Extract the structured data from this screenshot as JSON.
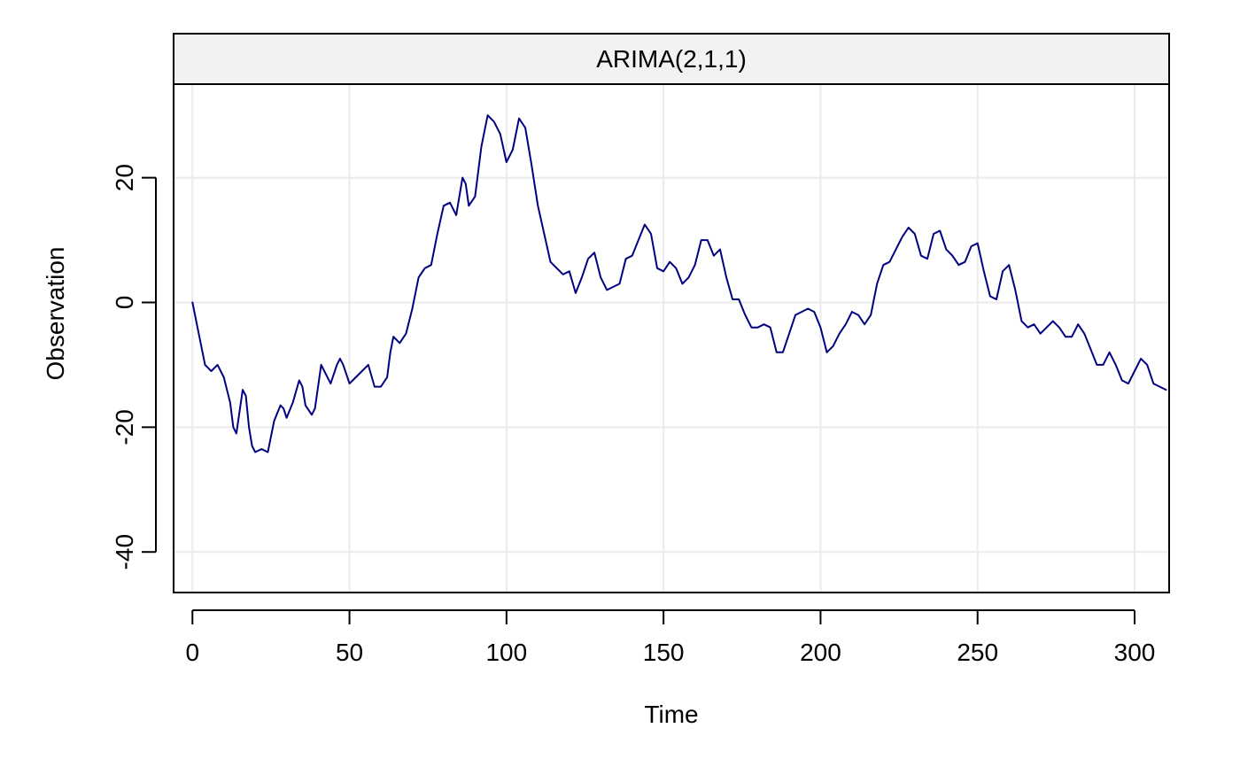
{
  "chart_data": {
    "type": "line",
    "title": "ARIMA(2,1,1)",
    "xlabel": "Time",
    "ylabel": "Observation",
    "xlim": [
      -6,
      311
    ],
    "ylim": [
      -46.5,
      35
    ],
    "x_ticks": [
      0,
      50,
      100,
      150,
      200,
      250,
      300
    ],
    "x_tick_labels": [
      "0",
      "50",
      "100",
      "150",
      "200",
      "250",
      "300"
    ],
    "y_ticks": [
      -40,
      -20,
      0,
      20
    ],
    "y_tick_labels": [
      "-40",
      "-20",
      "0",
      "20"
    ],
    "grid": true,
    "legend": "none",
    "colors": {
      "line": "#000080",
      "grid": "#ebebeb",
      "strip_fill": "#f2f2f2",
      "frame": "#000000"
    },
    "series": [
      {
        "name": "ARIMA(2,1,1)",
        "points": [
          [
            0,
            0
          ],
          [
            2,
            -5
          ],
          [
            4,
            -10
          ],
          [
            6,
            -11
          ],
          [
            8,
            -10
          ],
          [
            10,
            -12
          ],
          [
            12,
            -16
          ],
          [
            13,
            -20
          ],
          [
            14,
            -21
          ],
          [
            16,
            -14
          ],
          [
            17,
            -15
          ],
          [
            18,
            -20
          ],
          [
            19,
            -23
          ],
          [
            20,
            -24
          ],
          [
            22,
            -23.5
          ],
          [
            24,
            -24
          ],
          [
            26,
            -19
          ],
          [
            28,
            -16.5
          ],
          [
            29,
            -17
          ],
          [
            30,
            -18.5
          ],
          [
            32,
            -16
          ],
          [
            34,
            -12.5
          ],
          [
            35,
            -13.5
          ],
          [
            36,
            -16.5
          ],
          [
            38,
            -18
          ],
          [
            39,
            -17
          ],
          [
            41,
            -10
          ],
          [
            42,
            -11
          ],
          [
            44,
            -13
          ],
          [
            46,
            -10
          ],
          [
            47,
            -9
          ],
          [
            48,
            -10
          ],
          [
            50,
            -13
          ],
          [
            52,
            -12
          ],
          [
            54,
            -11
          ],
          [
            56,
            -10
          ],
          [
            58,
            -13.5
          ],
          [
            60,
            -13.5
          ],
          [
            62,
            -12
          ],
          [
            63,
            -8
          ],
          [
            64,
            -5.5
          ],
          [
            66,
            -6.5
          ],
          [
            68,
            -5
          ],
          [
            70,
            -1
          ],
          [
            72,
            4
          ],
          [
            74,
            5.5
          ],
          [
            76,
            6
          ],
          [
            78,
            11
          ],
          [
            80,
            15.5
          ],
          [
            82,
            16
          ],
          [
            84,
            14
          ],
          [
            86,
            20
          ],
          [
            87,
            19
          ],
          [
            88,
            15.5
          ],
          [
            90,
            17
          ],
          [
            92,
            25
          ],
          [
            94,
            30
          ],
          [
            96,
            29
          ],
          [
            98,
            27
          ],
          [
            100,
            22.5
          ],
          [
            102,
            24.5
          ],
          [
            104,
            29.5
          ],
          [
            106,
            28
          ],
          [
            108,
            22
          ],
          [
            110,
            15.5
          ],
          [
            112,
            11
          ],
          [
            114,
            6.5
          ],
          [
            116,
            5.5
          ],
          [
            118,
            4.5
          ],
          [
            120,
            5
          ],
          [
            122,
            1.5
          ],
          [
            124,
            4
          ],
          [
            126,
            7
          ],
          [
            128,
            8
          ],
          [
            130,
            4
          ],
          [
            132,
            2
          ],
          [
            134,
            2.5
          ],
          [
            136,
            3
          ],
          [
            138,
            7
          ],
          [
            140,
            7.5
          ],
          [
            142,
            10
          ],
          [
            144,
            12.5
          ],
          [
            146,
            11
          ],
          [
            148,
            5.5
          ],
          [
            150,
            5
          ],
          [
            152,
            6.5
          ],
          [
            154,
            5.5
          ],
          [
            156,
            3
          ],
          [
            158,
            4
          ],
          [
            160,
            6
          ],
          [
            162,
            10
          ],
          [
            164,
            10
          ],
          [
            166,
            7.5
          ],
          [
            168,
            8.5
          ],
          [
            170,
            4
          ],
          [
            172,
            0.5
          ],
          [
            174,
            0.5
          ],
          [
            176,
            -2
          ],
          [
            178,
            -4
          ],
          [
            180,
            -4
          ],
          [
            182,
            -3.5
          ],
          [
            184,
            -4
          ],
          [
            186,
            -8
          ],
          [
            188,
            -8
          ],
          [
            190,
            -5
          ],
          [
            192,
            -2
          ],
          [
            194,
            -1.5
          ],
          [
            196,
            -1
          ],
          [
            198,
            -1.5
          ],
          [
            200,
            -4
          ],
          [
            202,
            -8
          ],
          [
            204,
            -7
          ],
          [
            206,
            -5
          ],
          [
            208,
            -3.5
          ],
          [
            210,
            -1.5
          ],
          [
            212,
            -2
          ],
          [
            214,
            -3.5
          ],
          [
            216,
            -2
          ],
          [
            218,
            3
          ],
          [
            220,
            6
          ],
          [
            222,
            6.5
          ],
          [
            224,
            8.5
          ],
          [
            226,
            10.5
          ],
          [
            228,
            12
          ],
          [
            230,
            11
          ],
          [
            232,
            7.5
          ],
          [
            234,
            7
          ],
          [
            236,
            11
          ],
          [
            238,
            11.5
          ],
          [
            240,
            8.5
          ],
          [
            242,
            7.5
          ],
          [
            244,
            6
          ],
          [
            246,
            6.5
          ],
          [
            248,
            9
          ],
          [
            250,
            9.5
          ],
          [
            252,
            5
          ],
          [
            254,
            1
          ],
          [
            256,
            0.5
          ],
          [
            258,
            5
          ],
          [
            260,
            6
          ],
          [
            262,
            2
          ],
          [
            264,
            -3
          ],
          [
            266,
            -4
          ],
          [
            268,
            -3.5
          ],
          [
            270,
            -5
          ],
          [
            272,
            -4
          ],
          [
            274,
            -3
          ],
          [
            276,
            -4
          ],
          [
            278,
            -5.5
          ],
          [
            280,
            -5.5
          ],
          [
            282,
            -3.5
          ],
          [
            284,
            -5
          ],
          [
            286,
            -7.5
          ],
          [
            288,
            -10
          ],
          [
            290,
            -10
          ],
          [
            292,
            -8
          ],
          [
            294,
            -10
          ],
          [
            296,
            -12.5
          ],
          [
            298,
            -13
          ],
          [
            300,
            -11
          ],
          [
            302,
            -9
          ],
          [
            304,
            -10
          ],
          [
            306,
            -13
          ],
          [
            308,
            -13.5
          ],
          [
            310,
            -14
          ]
        ]
      }
    ]
  }
}
